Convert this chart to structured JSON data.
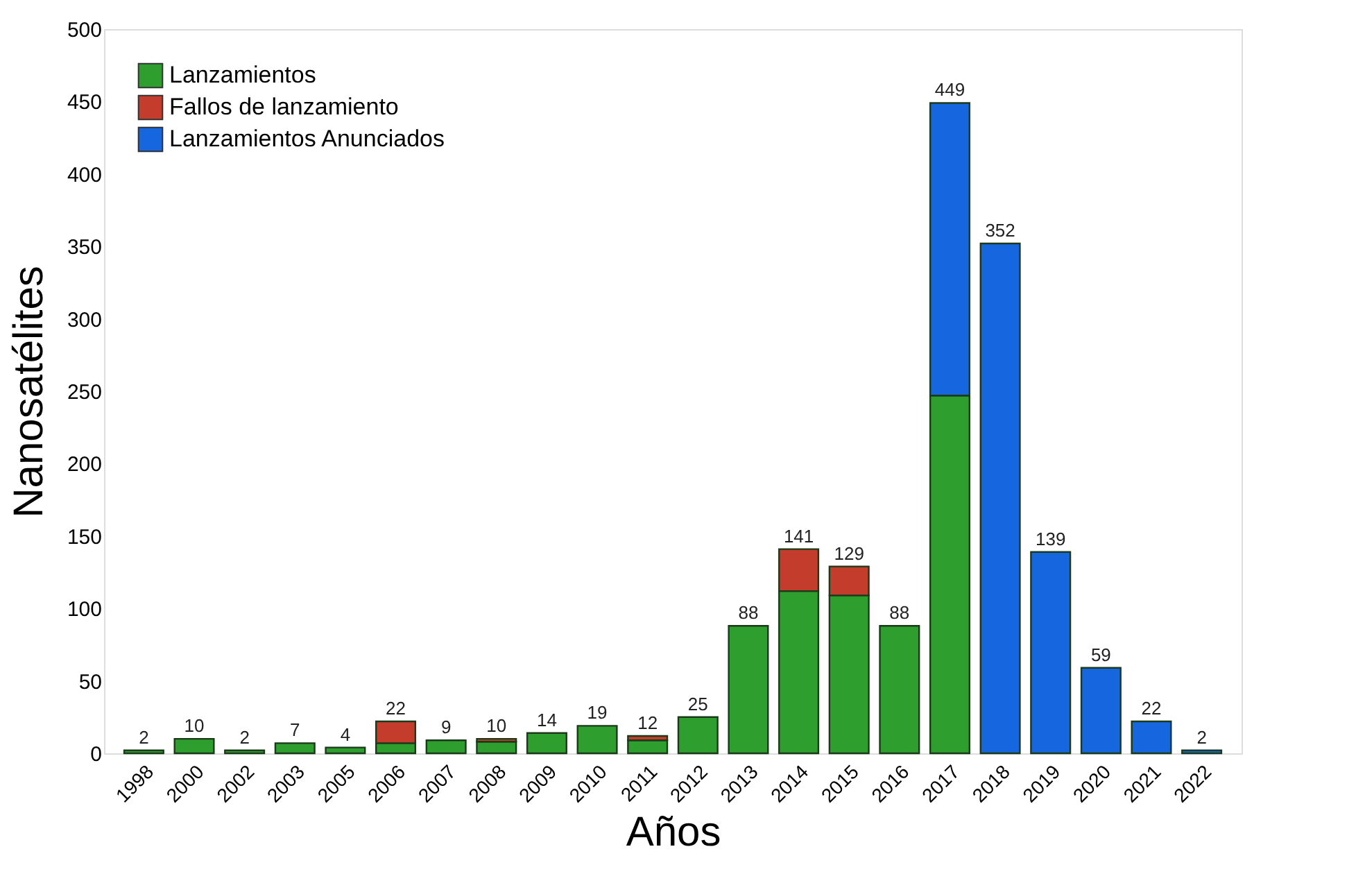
{
  "chart_data": {
    "type": "bar",
    "stacked": true,
    "xlabel": "Años",
    "ylabel": "Nanosatélites",
    "categories": [
      "1998",
      "2000",
      "2002",
      "2003",
      "2005",
      "2006",
      "2007",
      "2008",
      "2009",
      "2010",
      "2011",
      "2012",
      "2013",
      "2014",
      "2015",
      "2016",
      "2017",
      "2018",
      "2019",
      "2020",
      "2021",
      "2022"
    ],
    "series": [
      {
        "name": "Lanzamientos",
        "color": "#2e9e2e",
        "values": [
          2,
          10,
          2,
          7,
          4,
          7,
          9,
          8,
          14,
          19,
          9,
          25,
          88,
          112,
          109,
          88,
          247,
          null,
          null,
          null,
          null,
          null
        ]
      },
      {
        "name": "Fallos de lanzamiento",
        "color": "#c43c2c",
        "values": [
          null,
          null,
          null,
          null,
          null,
          15,
          null,
          2,
          null,
          null,
          3,
          null,
          null,
          29,
          20,
          null,
          null,
          null,
          null,
          null,
          null,
          null
        ]
      },
      {
        "name": "Lanzamientos Anunciados",
        "color": "#1666e0",
        "values": [
          null,
          null,
          null,
          null,
          null,
          null,
          null,
          null,
          null,
          null,
          null,
          null,
          null,
          null,
          null,
          null,
          202,
          352,
          139,
          59,
          22,
          2
        ]
      }
    ],
    "totals": [
      "2",
      "10",
      "2",
      "7",
      "4",
      "22",
      "9",
      "10",
      "14",
      "19",
      "12",
      "25",
      "88",
      "141",
      "129",
      "88",
      "449",
      "352",
      "139",
      "59",
      "22",
      "2"
    ],
    "ylim": [
      0,
      500
    ],
    "yticks": [
      0,
      50,
      100,
      150,
      200,
      250,
      300,
      350,
      400,
      450,
      500
    ],
    "grid": false,
    "legend": "top left"
  }
}
